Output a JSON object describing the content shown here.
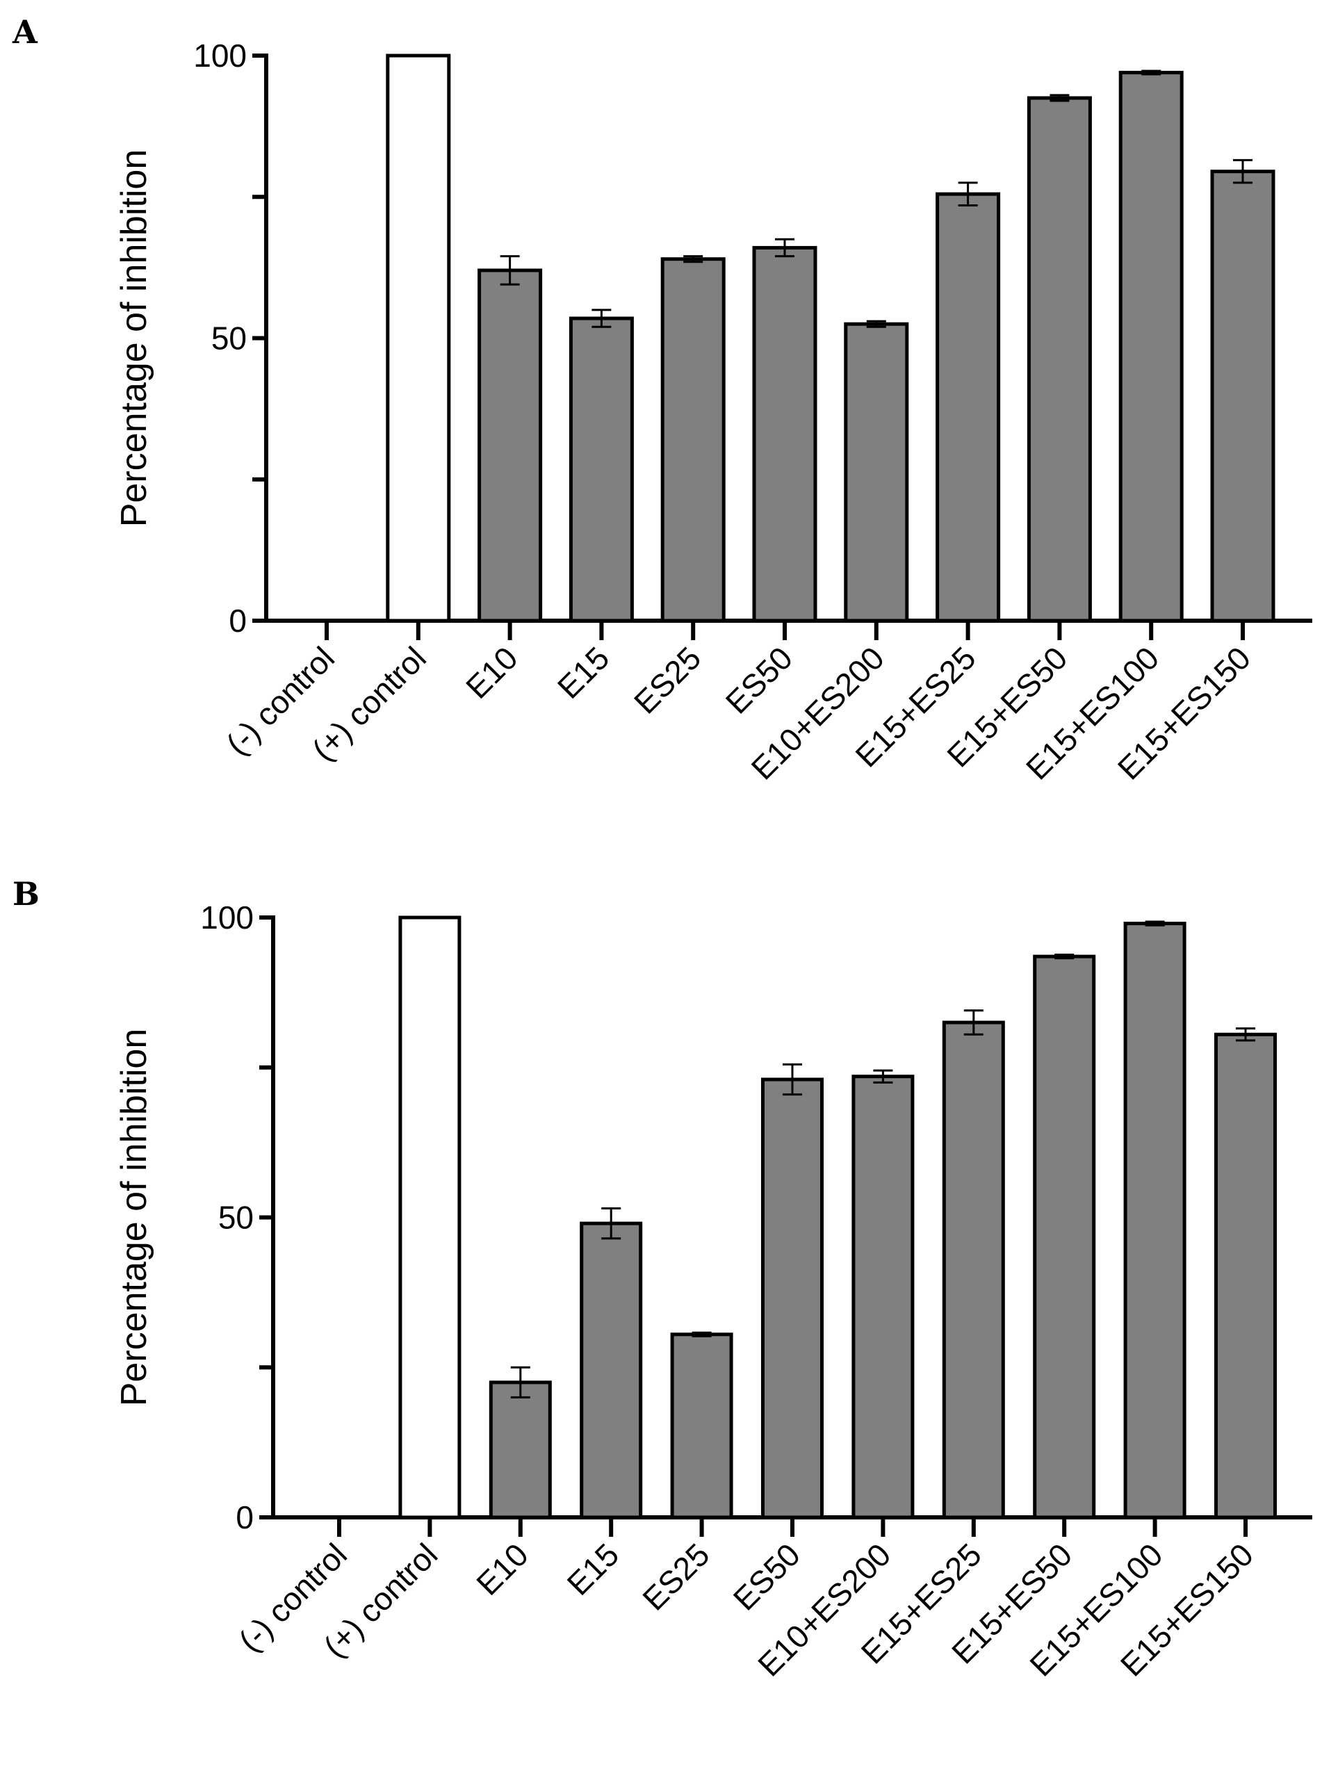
{
  "chart_data": [
    {
      "type": "bar",
      "panel": "A",
      "ylabel": "Percentage of inhibition",
      "xlabel": "",
      "ylim": [
        0,
        100
      ],
      "yticks": [
        0,
        25,
        50,
        75,
        100
      ],
      "ytick_labels": [
        "0",
        "",
        "50",
        "",
        "100"
      ],
      "categories": [
        "(-) control",
        "(+) control",
        "E10",
        "E15",
        "ES25",
        "ES50",
        "E10+ES200",
        "E15+ES25",
        "E15+ES50",
        "E15+ES100",
        "E15+ES150"
      ],
      "values": [
        0,
        100,
        62,
        53.5,
        64,
        66,
        52.5,
        75.5,
        92.5,
        97,
        79.5
      ],
      "errors": [
        0,
        0,
        2.5,
        1.5,
        0.5,
        1.5,
        0.5,
        2.0,
        0.5,
        0.3,
        2.0
      ],
      "colors": [
        "#ffffff",
        "#ffffff",
        "#808080",
        "#808080",
        "#808080",
        "#808080",
        "#808080",
        "#808080",
        "#808080",
        "#808080",
        "#808080"
      ]
    },
    {
      "type": "bar",
      "panel": "B",
      "ylabel": "Percentage of inhibition",
      "xlabel": "",
      "ylim": [
        0,
        100
      ],
      "yticks": [
        0,
        25,
        50,
        75,
        100
      ],
      "ytick_labels": [
        "0",
        "",
        "50",
        "",
        "100"
      ],
      "categories": [
        "(-) control",
        "(+) control",
        "E10",
        "E15",
        "ES25",
        "ES50",
        "E10+ES200",
        "E15+ES25",
        "E15+ES50",
        "E15+ES100",
        "E15+ES150"
      ],
      "values": [
        0,
        100,
        22.5,
        49,
        30.5,
        73,
        73.5,
        82.5,
        93.5,
        99,
        80.5
      ],
      "errors": [
        0,
        0,
        2.5,
        2.5,
        0.3,
        2.5,
        1.0,
        2.0,
        0.3,
        0.3,
        1.0
      ],
      "colors": [
        "#ffffff",
        "#ffffff",
        "#808080",
        "#808080",
        "#808080",
        "#808080",
        "#808080",
        "#808080",
        "#808080",
        "#808080",
        "#808080"
      ]
    }
  ]
}
